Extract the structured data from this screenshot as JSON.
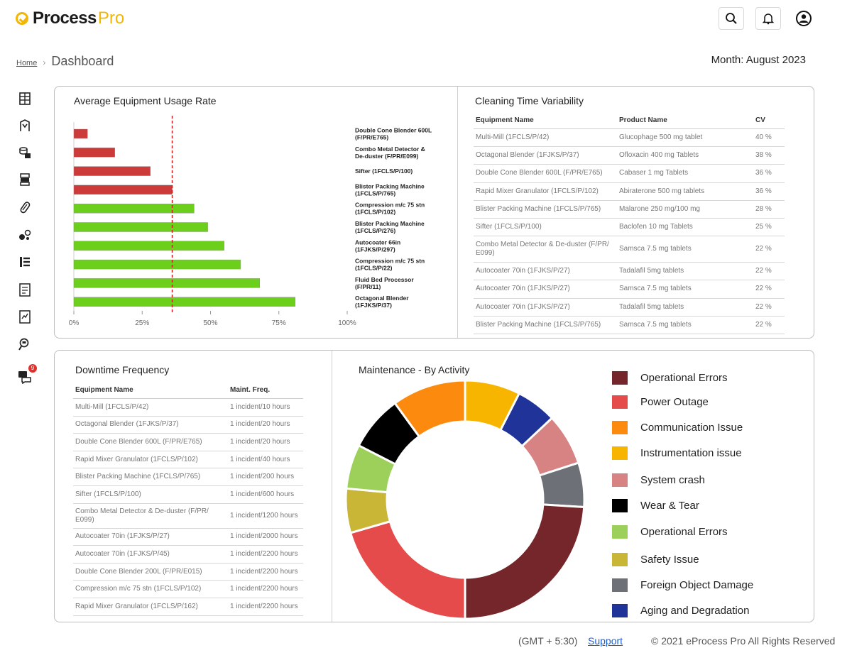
{
  "brand": {
    "part1": "Process",
    "part2": "Pro"
  },
  "header": {
    "search_icon": "search-icon",
    "bell_icon": "bell-icon",
    "user_icon": "user-circle-icon"
  },
  "breadcrumb": {
    "home": "Home",
    "current": "Dashboard"
  },
  "month": "Month: August 2023",
  "sidebar": {
    "icons": [
      "building-icon",
      "tank-icon",
      "cylinders-icon",
      "server-stack-icon",
      "capsule-icon",
      "pills-icon",
      "list-icon",
      "document-icon",
      "report-icon",
      "search-pill-icon",
      "messages-icon"
    ],
    "badge": "9"
  },
  "usage": {
    "title": "Average Equipment Usage Rate",
    "chart_data": {
      "type": "bar",
      "orientation": "horizontal",
      "title": "Average Equipment Usage Rate",
      "categories": [
        [
          "Double Cone Blender 600L",
          "(F/PR/E765)"
        ],
        [
          "Combo Metal Detector &",
          "De-duster (F/PR/E099)"
        ],
        [
          "Sifter (1FCLS/P/100)"
        ],
        [
          "Blister Packing Machine",
          "(1FCLS/P/765)"
        ],
        [
          "Compression m/c 75 stn",
          "(1FCLS/P/102)"
        ],
        [
          "Blister Packing Machine",
          "(1FCLS/P/276)"
        ],
        [
          "Autocoater 66in",
          "(1FJKS/P/297)"
        ],
        [
          "Compression m/c 75 stn",
          "(1FCLS/P/22)"
        ],
        [
          "Fluid Bed Processor",
          "(F/PR/11)"
        ],
        [
          "Octagonal Blender",
          "(1FJKS/P/37)"
        ]
      ],
      "values": [
        5,
        15,
        28,
        36,
        44,
        49,
        55,
        61,
        68,
        81
      ],
      "status": [
        "low",
        "low",
        "low",
        "low",
        "ok",
        "ok",
        "ok",
        "ok",
        "ok",
        "ok"
      ],
      "colors": {
        "low": "#cc3a3a",
        "ok": "#6ccf1c"
      },
      "threshold": 36,
      "threshold_color": "#d42020",
      "xlim": [
        0,
        100
      ],
      "ticks": [
        "0%",
        "25%",
        "50%",
        "75%",
        "100%"
      ]
    }
  },
  "cleaning": {
    "title": "Cleaning Time Variability",
    "headers": [
      "Equipment Name",
      "Product Name",
      "CV"
    ],
    "rows": [
      [
        "Multi-Mill (1FCLS/P/42)",
        "Glucophage 500 mg tablet",
        "40 %"
      ],
      [
        "Octagonal Blender (1FJKS/P/37)",
        "Ofloxacin 400 mg Tablets",
        "38 %"
      ],
      [
        "Double Cone Blender 600L (F/PR/E765)",
        "Cabaser 1 mg Tablets",
        "36 %"
      ],
      [
        "Rapid Mixer Granulator (1FCLS/P/102)",
        "Abiraterone 500 mg tablets",
        "36 %"
      ],
      [
        "Blister Packing Machine (1FCLS/P/765)",
        "Malarone 250 mg/100 mg",
        "28 %"
      ],
      [
        "Sifter (1FCLS/P/100)",
        "Baclofen 10 mg Tablets",
        "25 %"
      ],
      [
        "Combo Metal Detector & De-duster (F/PR/ E099)",
        "Samsca 7.5 mg tablets",
        "22 %"
      ],
      [
        "Autocoater 70in (1FJKS/P/27)",
        "Tadalafil 5mg tablets",
        "22 %"
      ],
      [
        "Autocoater 70in (1FJKS/P/27)",
        "Samsca 7.5 mg tablets",
        "22 %"
      ],
      [
        "Autocoater 70in (1FJKS/P/27)",
        "Tadalafil 5mg tablets",
        "22 %"
      ],
      [
        "Blister Packing Machine (1FCLS/P/765)",
        "Samsca 7.5 mg tablets",
        "22 %"
      ]
    ]
  },
  "downtime": {
    "title": "Downtime Frequency",
    "headers": [
      "Equipment Name",
      "Maint. Freq."
    ],
    "rows": [
      [
        "Multi-Mill (1FCLS/P/42)",
        "1 incident/10 hours"
      ],
      [
        "Octagonal Blender (1FJKS/P/37)",
        "1 incident/20 hours"
      ],
      [
        "Double Cone Blender 600L (F/PR/E765)",
        "1 incident/20 hours"
      ],
      [
        "Rapid Mixer Granulator (1FCLS/P/102)",
        "1 incident/40 hours"
      ],
      [
        "Blister Packing Machine (1FCLS/P/765)",
        "1 incident/200 hours"
      ],
      [
        "Sifter (1FCLS/P/100)",
        "1 incident/600 hours"
      ],
      [
        "Combo Metal Detector & De-duster (F/PR/ E099)",
        "1 incident/1200 hours"
      ],
      [
        "Autocoater 70in (1FJKS/P/27)",
        "1 incident/2000 hours"
      ],
      [
        "Autocoater 70in (1FJKS/P/45)",
        "1 incident/2200 hours"
      ],
      [
        "Double Cone Blender 200L (F/PR/E015)",
        "1 incident/2200 hours"
      ],
      [
        "Compression m/c 75 stn (1FCLS/P/102)",
        "1 incident/2200 hours"
      ],
      [
        "Rapid Mixer Granulator (1FCLS/P/162)",
        "1 incident/2200 hours"
      ]
    ]
  },
  "maintenance": {
    "title": "Maintenance - By Activity",
    "chart_data": {
      "type": "pie",
      "style": "donut",
      "title": "Maintenance - By Activity",
      "slices": [
        {
          "name": "Instrumentation issue",
          "value": 7.5,
          "color": "#f7b500"
        },
        {
          "name": "Aging and Degradation",
          "value": 5.5,
          "color": "#1f3399"
        },
        {
          "name": "System crash",
          "value": 7,
          "color": "#d88383"
        },
        {
          "name": "Foreign Object Damage",
          "value": 6,
          "color": "#6d7177"
        },
        {
          "name": "Operational Errors",
          "value": 24,
          "color": "#74262a"
        },
        {
          "name": "Power Outage",
          "value": 20.5,
          "color": "#e64b4b"
        },
        {
          "name": "Safety Issue",
          "value": 6,
          "color": "#c9b536"
        },
        {
          "name": "Operational Errors",
          "value": 6,
          "color": "#9dd05b"
        },
        {
          "name": "Wear & Tear",
          "value": 7.5,
          "color": "#000000"
        },
        {
          "name": "Communication Issue",
          "value": 10,
          "color": "#fb8a0e"
        }
      ]
    },
    "legend": [
      {
        "label": "Operational Errors",
        "color": "#74262a"
      },
      {
        "label": "Power Outage",
        "color": "#e64b4b"
      },
      {
        "label": "Communication Issue",
        "color": "#fb8a0e"
      },
      {
        "label": "Instrumentation issue",
        "color": "#f7b500"
      },
      {
        "label": "System crash",
        "color": "#d88383"
      },
      {
        "label": "Wear & Tear",
        "color": "#000000"
      },
      {
        "label": "Operational Errors",
        "color": "#9dd05b"
      },
      {
        "label": "Safety Issue",
        "color": "#c9b536"
      },
      {
        "label": "Foreign Object Damage",
        "color": "#6d7177"
      },
      {
        "label": "Aging and Degradation",
        "color": "#1f3399"
      }
    ]
  },
  "footer": {
    "timezone": "(GMT + 5:30)",
    "support": "Support",
    "copyright": "© 2021 eProcess Pro All Rights Reserved"
  }
}
